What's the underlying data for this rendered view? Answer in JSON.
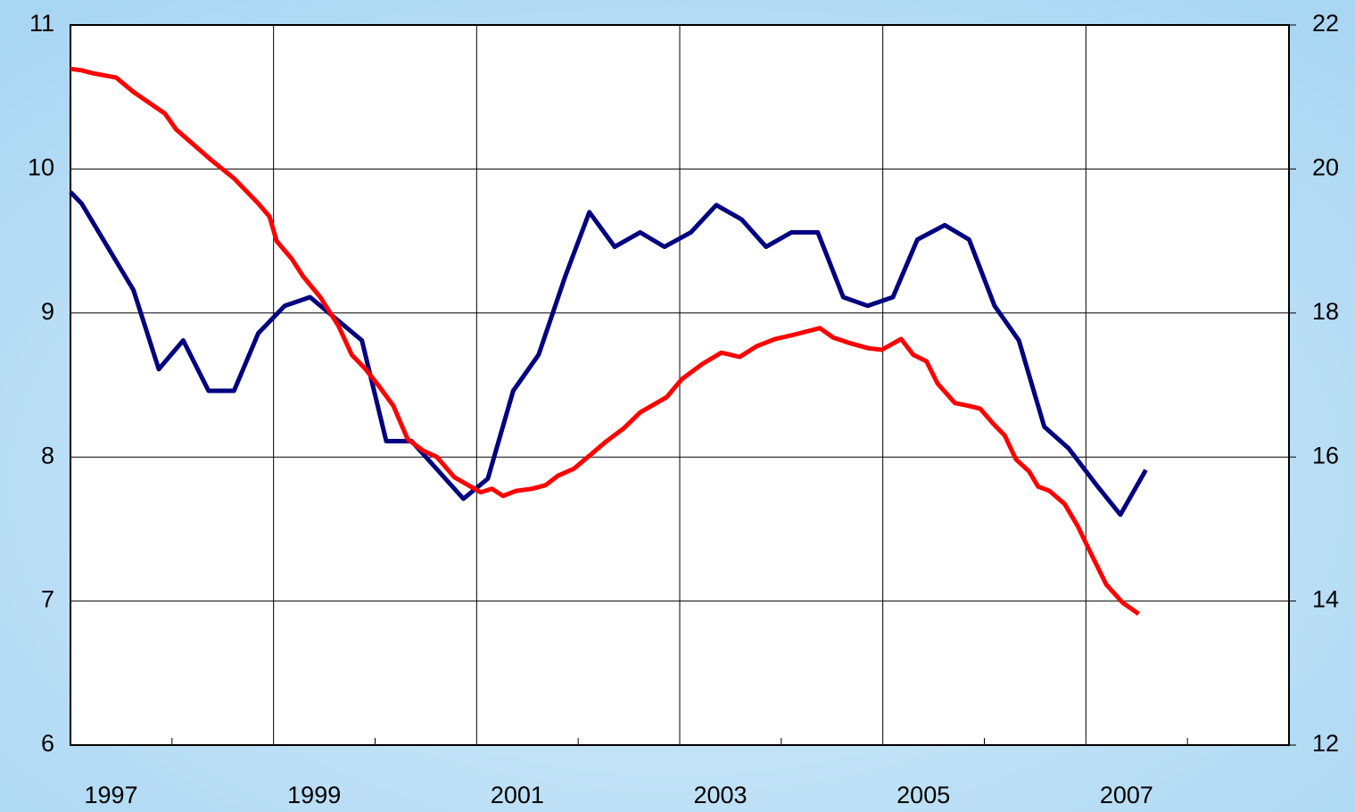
{
  "chart_data": {
    "type": "line",
    "x": [
      1997,
      1997.11,
      1997.62,
      1997.87,
      1998.11,
      1998.36,
      1998.61,
      1998.85,
      1999.11,
      1999.36,
      1999.87,
      2000.11,
      2000.36,
      2000.87,
      2001.11,
      2001.36,
      2001.61,
      2001.87,
      2002.11,
      2002.36,
      2002.61,
      2002.85,
      2003.11,
      2003.36,
      2003.61,
      2003.85,
      2004.1,
      2004.36,
      2004.61,
      2004.85,
      2005.1,
      2005.34,
      2005.61,
      2005.85,
      2006.1,
      2006.34,
      2006.59,
      2006.83,
      2007.1,
      2007.34,
      2007.59
    ],
    "series": [
      {
        "color": "#000080",
        "values": [
          9.84,
          9.76,
          9.16,
          8.61,
          8.81,
          8.46,
          8.46,
          8.86,
          9.05,
          9.11,
          8.81,
          8.11,
          8.11,
          7.71,
          7.85,
          8.46,
          8.71,
          9.25,
          9.7,
          9.46,
          9.56,
          9.46,
          9.56,
          9.75,
          9.65,
          9.46,
          9.56,
          9.56,
          9.11,
          9.05,
          9.11,
          9.51,
          9.61,
          9.51,
          9.05,
          8.81,
          8.21,
          8.06,
          7.81,
          7.6,
          7.91
        ]
      },
      {
        "color": "#ff0000",
        "axis": "y2",
        "x": [
          1997,
          1997.11,
          1997.22,
          1997.45,
          1997.62,
          1997.93,
          1998.04,
          1998.22,
          1998.39,
          1998.61,
          1998.85,
          1998.96,
          1999.03,
          1999.18,
          1999.29,
          1999.46,
          1999.64,
          1999.77,
          1999.9,
          2000.04,
          2000.18,
          2000.32,
          2000.47,
          2000.61,
          2000.78,
          2001.04,
          2001.15,
          2001.26,
          2001.39,
          2001.55,
          2001.68,
          2001.8,
          2001.96,
          2002.12,
          2002.27,
          2002.45,
          2002.61,
          2002.87,
          2003.02,
          2003.22,
          2003.41,
          2003.59,
          2003.76,
          2003.94,
          2004.13,
          2004.38,
          2004.51,
          2004.68,
          2004.86,
          2004.99,
          2005.18,
          2005.3,
          2005.43,
          2005.54,
          2005.71,
          2005.85,
          2005.96,
          2006.09,
          2006.2,
          2006.31,
          2006.44,
          2006.53,
          2006.64,
          2006.79,
          2006.92,
          2007.05,
          2007.2,
          2007.36,
          2007.52
        ],
        "values": [
          21.39,
          21.37,
          21.33,
          21.27,
          21.07,
          20.77,
          20.55,
          20.33,
          20.12,
          19.87,
          19.52,
          19.34,
          19.0,
          18.75,
          18.51,
          18.22,
          17.82,
          17.42,
          17.23,
          16.98,
          16.71,
          16.25,
          16.09,
          16.0,
          15.72,
          15.51,
          15.56,
          15.46,
          15.53,
          15.56,
          15.61,
          15.74,
          15.84,
          16.03,
          16.21,
          16.4,
          16.62,
          16.83,
          17.08,
          17.29,
          17.45,
          17.39,
          17.54,
          17.64,
          17.7,
          17.79,
          17.66,
          17.58,
          17.51,
          17.49,
          17.64,
          17.42,
          17.33,
          17.02,
          16.75,
          16.71,
          16.67,
          16.46,
          16.3,
          15.97,
          15.8,
          15.59,
          15.53,
          15.35,
          15.04,
          14.66,
          14.23,
          13.98,
          13.82
        ]
      }
    ],
    "xlim": [
      1997,
      2009
    ],
    "xticks": [
      1997,
      1999,
      2001,
      2003,
      2005,
      2007
    ],
    "ylim": [
      6,
      11
    ],
    "yticks": [
      6,
      7,
      8,
      9,
      10,
      11
    ],
    "y2lim": [
      12,
      22
    ],
    "y2ticks": [
      12,
      14,
      16,
      18,
      20,
      22
    ],
    "grid": true
  }
}
